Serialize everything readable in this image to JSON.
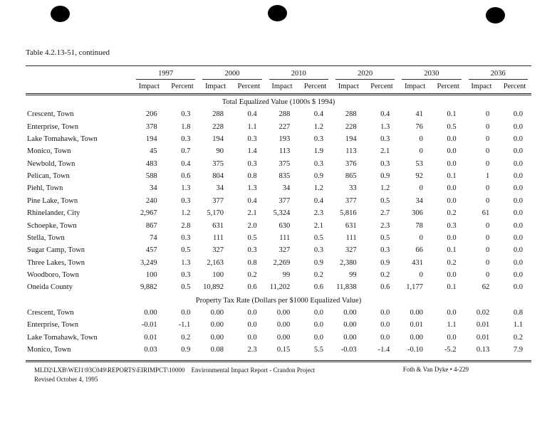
{
  "page": {
    "title": "Table 4.2.13-51, continued"
  },
  "table": {
    "years": [
      "1997",
      "2000",
      "2010",
      "2020",
      "2030",
      "2036"
    ],
    "subheaders": [
      "Impact",
      "Percent"
    ],
    "sections": [
      {
        "title": "Total Equalized Value (1000s $ 1994)",
        "rows": [
          {
            "name": "Crescent, Town",
            "values": [
              "206",
              "0.3",
              "288",
              "0.4",
              "288",
              "0.4",
              "288",
              "0.4",
              "41",
              "0.1",
              "0",
              "0.0"
            ]
          },
          {
            "name": "Enterprise, Town",
            "values": [
              "378",
              "1.8",
              "228",
              "1.1",
              "227",
              "1.2",
              "228",
              "1.3",
              "76",
              "0.5",
              "0",
              "0.0"
            ]
          },
          {
            "name": "Lake Tomahawk, Town",
            "values": [
              "194",
              "0.3",
              "194",
              "0.3",
              "193",
              "0.3",
              "194",
              "0.3",
              "0",
              "0.0",
              "0",
              "0.0"
            ]
          },
          {
            "name": "Monico, Town",
            "values": [
              "45",
              "0.7",
              "90",
              "1.4",
              "113",
              "1.9",
              "113",
              "2.1",
              "0",
              "0.0",
              "0",
              "0.0"
            ]
          },
          {
            "name": "Newbold, Town",
            "values": [
              "483",
              "0.4",
              "375",
              "0.3",
              "375",
              "0.3",
              "376",
              "0.3",
              "53",
              "0.0",
              "0",
              "0.0"
            ]
          },
          {
            "name": "Pelican, Town",
            "values": [
              "588",
              "0.6",
              "804",
              "0.8",
              "835",
              "0.9",
              "865",
              "0.9",
              "92",
              "0.1",
              "1",
              "0.0"
            ]
          },
          {
            "name": "Piehl, Town",
            "values": [
              "34",
              "1.3",
              "34",
              "1.3",
              "34",
              "1.2",
              "33",
              "1.2",
              "0",
              "0.0",
              "0",
              "0.0"
            ]
          },
          {
            "name": "Pine Lake, Town",
            "values": [
              "240",
              "0.3",
              "377",
              "0.4",
              "377",
              "0.4",
              "377",
              "0.5",
              "34",
              "0.0",
              "0",
              "0.0"
            ]
          },
          {
            "name": "Rhinelander, City",
            "values": [
              "2,967",
              "1.2",
              "5,170",
              "2.1",
              "5,324",
              "2.3",
              "5,816",
              "2.7",
              "306",
              "0.2",
              "61",
              "0.0"
            ]
          },
          {
            "name": "Schoepke, Town",
            "values": [
              "867",
              "2.8",
              "631",
              "2.0",
              "630",
              "2.1",
              "631",
              "2.3",
              "78",
              "0.3",
              "0",
              "0.0"
            ]
          },
          {
            "name": "Stella, Town",
            "values": [
              "74",
              "0.3",
              "111",
              "0.5",
              "111",
              "0.5",
              "111",
              "0.5",
              "0",
              "0.0",
              "0",
              "0.0"
            ]
          },
          {
            "name": "Sugar Camp, Town",
            "values": [
              "457",
              "0.5",
              "327",
              "0.3",
              "327",
              "0.3",
              "327",
              "0.3",
              "66",
              "0.1",
              "0",
              "0.0"
            ]
          },
          {
            "name": "Three Lakes, Town",
            "values": [
              "3,249",
              "1.3",
              "2,163",
              "0.8",
              "2,269",
              "0.9",
              "2,380",
              "0.9",
              "431",
              "0.2",
              "0",
              "0.0"
            ]
          },
          {
            "name": "Woodboro, Town",
            "values": [
              "100",
              "0.3",
              "100",
              "0.2",
              "99",
              "0.2",
              "99",
              "0.2",
              "0",
              "0.0",
              "0",
              "0.0"
            ]
          },
          {
            "name": "Oneida County",
            "values": [
              "9,882",
              "0.5",
              "10,892",
              "0.6",
              "11,202",
              "0.6",
              "11,838",
              "0.6",
              "1,177",
              "0.1",
              "62",
              "0.0"
            ]
          }
        ]
      },
      {
        "title": "Property Tax Rate (Dollars per $1000 Equalized Value)",
        "rows": [
          {
            "name": "Crescent, Town",
            "values": [
              "0.00",
              "0.0",
              "0.00",
              "0.0",
              "0.00",
              "0.0",
              "0.00",
              "0.0",
              "0.00",
              "0.0",
              "0.02",
              "0.8"
            ]
          },
          {
            "name": "Enterprise, Town",
            "values": [
              "-0.01",
              "-1.1",
              "0.00",
              "0.0",
              "0.00",
              "0.0",
              "0.00",
              "0.0",
              "0.01",
              "1.1",
              "0.01",
              "1.1"
            ]
          },
          {
            "name": "Lake Tomahawk, Town",
            "values": [
              "0.01",
              "0.2",
              "0.00",
              "0.0",
              "0.00",
              "0.0",
              "0.00",
              "0.0",
              "0.00",
              "0.0",
              "0.01",
              "0.2"
            ]
          },
          {
            "name": "Monico, Town",
            "values": [
              "0.03",
              "0.9",
              "0.08",
              "2.3",
              "0.15",
              "5.5",
              "-0.03",
              "-1.4",
              "-0.10",
              "-5.2",
              "0.13",
              "7.9"
            ]
          }
        ]
      }
    ]
  },
  "footer": {
    "path": "MLD2\\LXB\\WEJ1\\93C049\\REPORTS\\EIRIMPCT\\10000",
    "report": "Environmental Impact Report - Crandon Project",
    "revised": "Revised October 4, 1995",
    "right": "Foth & Van Dyke • 4-229"
  }
}
